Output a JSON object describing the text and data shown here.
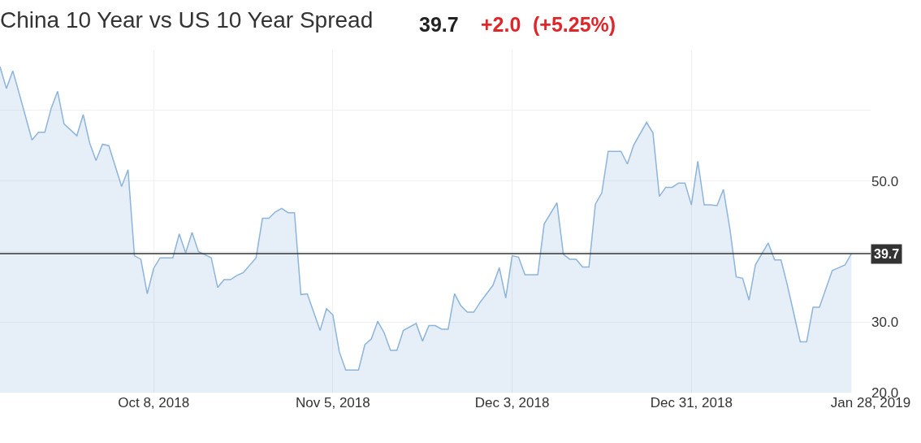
{
  "chart_data": {
    "type": "area",
    "title": "China 10 Year vs US 10 Year Spread",
    "annotations": [
      "39.7",
      "+2.0",
      "(+5.25%)"
    ],
    "x": [
      "2018-09-14",
      "2018-09-15",
      "2018-09-16",
      "2018-09-17",
      "2018-09-19",
      "2018-09-20",
      "2018-09-21",
      "2018-09-22",
      "2018-09-23",
      "2018-09-24",
      "2018-09-26",
      "2018-09-27",
      "2018-09-28",
      "2018-09-29",
      "2018-09-30",
      "2018-10-01",
      "2018-10-03",
      "2018-10-04",
      "2018-10-05",
      "2018-10-06",
      "2018-10-07",
      "2018-10-08",
      "2018-10-09",
      "2018-10-11",
      "2018-10-12",
      "2018-10-13",
      "2018-10-14",
      "2018-10-15",
      "2018-10-17",
      "2018-10-18",
      "2018-10-19",
      "2018-10-20",
      "2018-10-21",
      "2018-10-22",
      "2018-10-24",
      "2018-10-25",
      "2018-10-26",
      "2018-10-27",
      "2018-10-28",
      "2018-10-29",
      "2018-10-30",
      "2018-10-31",
      "2018-11-01",
      "2018-11-03",
      "2018-11-04",
      "2018-11-05",
      "2018-11-06",
      "2018-11-07",
      "2018-11-09",
      "2018-11-10",
      "2018-11-11",
      "2018-11-12",
      "2018-11-13",
      "2018-11-14",
      "2018-11-15",
      "2018-11-16",
      "2018-11-18",
      "2018-11-19",
      "2018-11-20",
      "2018-11-21",
      "2018-11-22",
      "2018-11-23",
      "2018-11-24",
      "2018-11-25",
      "2018-11-26",
      "2018-11-27",
      "2018-11-28",
      "2018-11-30",
      "2018-12-01",
      "2018-12-02",
      "2018-12-03",
      "2018-12-04",
      "2018-12-05",
      "2018-12-06",
      "2018-12-07",
      "2018-12-08",
      "2018-12-10",
      "2018-12-11",
      "2018-12-12",
      "2018-12-13",
      "2018-12-14",
      "2018-12-15",
      "2018-12-16",
      "2018-12-17",
      "2018-12-18",
      "2018-12-19",
      "2018-12-20",
      "2018-12-21",
      "2018-12-22",
      "2018-12-24",
      "2018-12-25",
      "2018-12-26",
      "2018-12-27",
      "2018-12-28",
      "2018-12-29",
      "2018-12-30",
      "2018-12-31",
      "2019-01-01",
      "2019-01-02",
      "2019-01-03",
      "2019-01-04",
      "2019-01-05",
      "2019-01-06",
      "2019-01-07",
      "2019-01-08",
      "2019-01-09",
      "2019-01-10",
      "2019-01-12",
      "2019-01-13",
      "2019-01-14",
      "2019-01-15",
      "2019-01-16",
      "2019-01-17",
      "2019-01-18",
      "2019-01-19",
      "2019-01-20",
      "2019-01-22",
      "2019-01-23",
      "2019-01-24",
      "2019-01-25"
    ],
    "series": [
      {
        "color": "#8db4db",
        "values": [
          66.2,
          63.1,
          65.6,
          62.4,
          55.8,
          56.9,
          56.9,
          60.3,
          62.7,
          58.1,
          56.4,
          59.4,
          55.4,
          52.9,
          55.2,
          55.0,
          49.2,
          51.6,
          39.4,
          38.9,
          34.0,
          37.6,
          39.1,
          39.1,
          42.5,
          39.8,
          42.7,
          40.0,
          39.1,
          34.9,
          36.0,
          36.0,
          36.6,
          37.0,
          39.1,
          44.7,
          44.7,
          45.6,
          46.1,
          45.5,
          45.5,
          33.9,
          34.0,
          28.8,
          31.9,
          31.0,
          25.8,
          23.2,
          23.2,
          26.8,
          27.6,
          30.1,
          28.5,
          26.0,
          26.0,
          28.8,
          29.8,
          27.3,
          29.5,
          29.5,
          29.0,
          29.0,
          34.0,
          32.3,
          31.4,
          31.4,
          32.8,
          35.2,
          37.7,
          33.4,
          39.4,
          39.2,
          36.7,
          36.7,
          36.7,
          43.9,
          46.9,
          39.6,
          38.9,
          38.9,
          37.8,
          37.8,
          46.7,
          48.3,
          54.2,
          54.2,
          54.2,
          52.4,
          55.1,
          58.3,
          56.8,
          47.8,
          49.1,
          49.1,
          49.7,
          49.7,
          46.6,
          52.8,
          46.6,
          46.6,
          46.5,
          48.8,
          43.3,
          36.4,
          36.2,
          33.1,
          38.1,
          41.2,
          38.8,
          38.8,
          35.2,
          31.2,
          27.2,
          27.2,
          32.1,
          32.1,
          37.3,
          37.7,
          38.1,
          39.7
        ]
      }
    ],
    "xlim": [
      "2018-09-14",
      "2019-01-28"
    ],
    "xticks": [
      {
        "value": "2018-10-08",
        "label": "Oct 8, 2018"
      },
      {
        "value": "2018-11-05",
        "label": "Nov 5, 2018"
      },
      {
        "value": "2018-12-03",
        "label": "Dec 3, 2018"
      },
      {
        "value": "2018-12-31",
        "label": "Dec 31, 2018"
      },
      {
        "value": "2019-01-28",
        "label": "Jan 28, 2019"
      }
    ],
    "ylim": [
      20,
      68.5
    ],
    "yticks": [
      {
        "value": 20,
        "label": "20.0"
      },
      {
        "value": 30,
        "label": "30.0"
      },
      {
        "value": 40,
        "label": null
      },
      {
        "value": 50,
        "label": "50.0"
      },
      {
        "value": 60,
        "label": null
      }
    ],
    "ref_lines": [
      {
        "axis": "y",
        "value": 39.7,
        "label": "39.7",
        "color": "#333333"
      }
    ],
    "grid": true
  }
}
